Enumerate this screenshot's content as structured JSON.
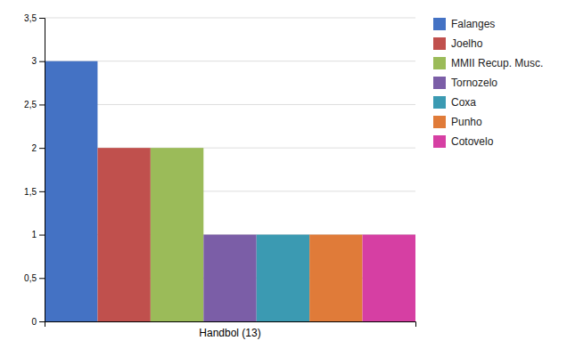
{
  "chart_data": {
    "type": "bar",
    "categories": [
      "Handbol (13)"
    ],
    "series": [
      {
        "name": "Falanges",
        "color": "#4472C4",
        "values": [
          3
        ]
      },
      {
        "name": "Joelho",
        "color": "#C0504D",
        "values": [
          2
        ]
      },
      {
        "name": "MMII Recup. Musc.",
        "color": "#9BBB59",
        "values": [
          2
        ]
      },
      {
        "name": "Tornozelo",
        "color": "#7B5EA7",
        "values": [
          1
        ]
      },
      {
        "name": "Coxa",
        "color": "#3B9AB2",
        "values": [
          1
        ]
      },
      {
        "name": "Punho",
        "color": "#E07B39",
        "values": [
          1
        ]
      },
      {
        "name": "Cotovelo",
        "color": "#D63FA3",
        "values": [
          1
        ]
      }
    ],
    "ylim": [
      0,
      3.5
    ],
    "yticks": [
      0,
      {
        "value": 0.5,
        "label": "0,5"
      },
      1,
      {
        "value": 1.5,
        "label": "1,5"
      },
      2,
      {
        "value": 2.5,
        "label": "2,5"
      },
      3,
      {
        "value": 3.5,
        "label": "3,5"
      }
    ],
    "grid": true,
    "legend": "right"
  }
}
